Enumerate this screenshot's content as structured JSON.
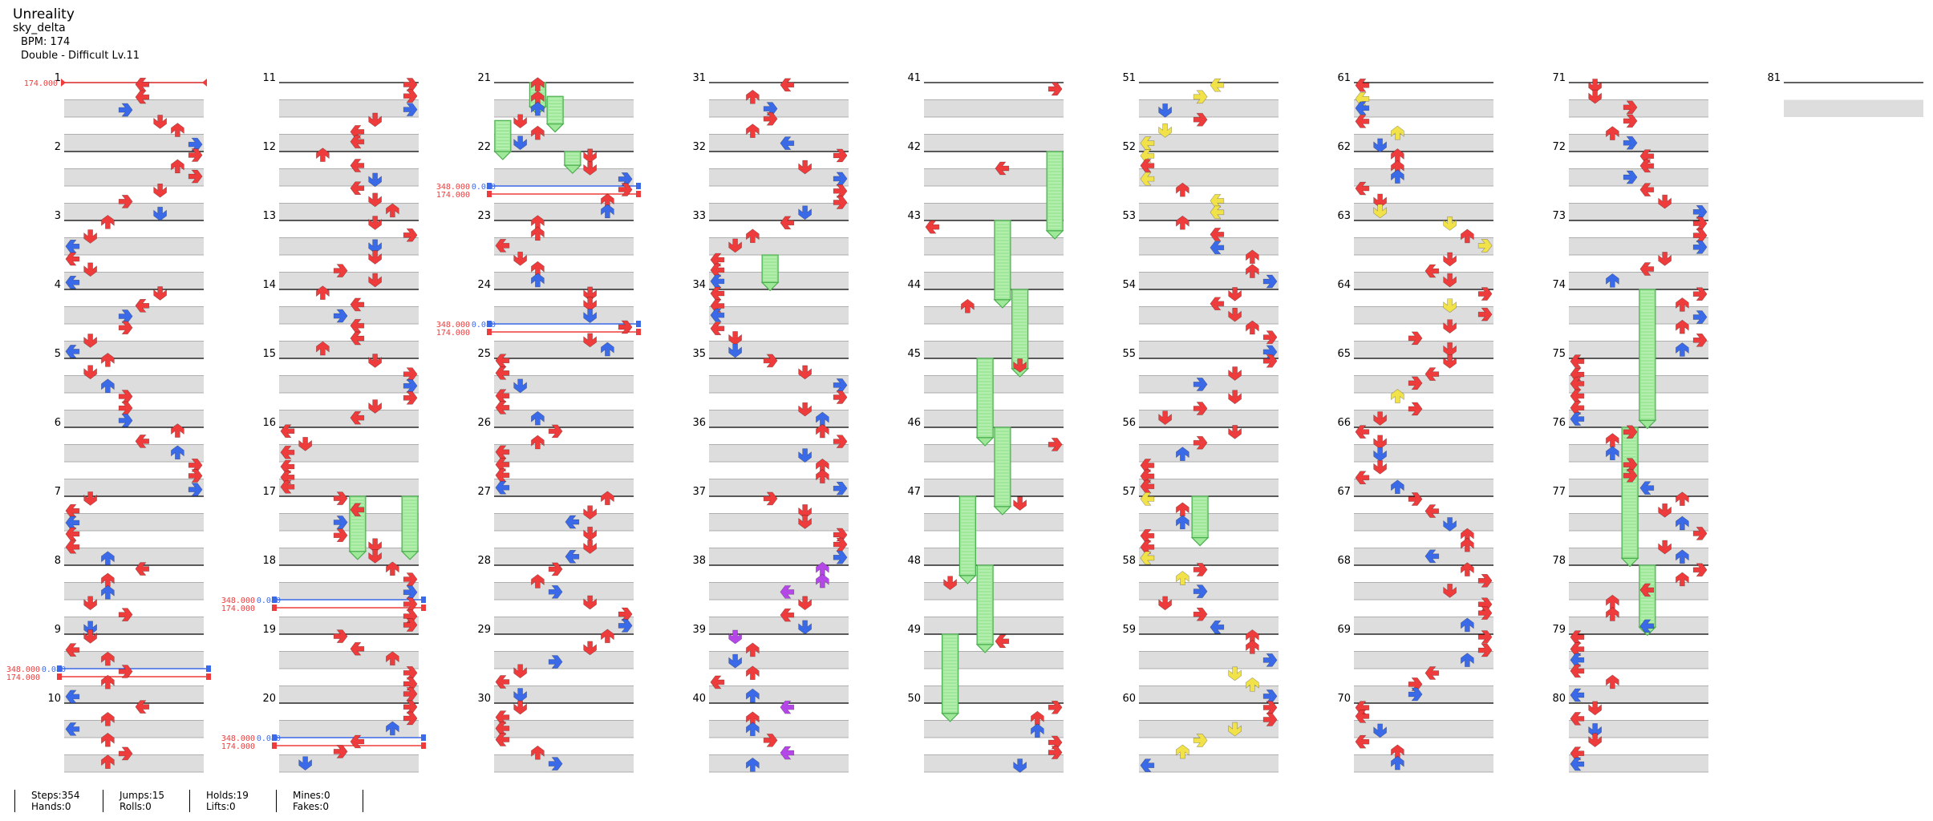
{
  "song": {
    "title": "Unreality",
    "author": "sky_delta",
    "bpm": "BPM: 174",
    "difficulty": "Double - Difficult  Lv.11"
  },
  "stats": [
    {
      "line1": "Steps:354",
      "line2": "Hands:0"
    },
    {
      "line1": "Jumps:15",
      "line2": "Rolls:0"
    },
    {
      "line1": "Holds:19",
      "line2": "Lifts:0"
    },
    {
      "line1": "Mines:0",
      "line2": "Fakes:0"
    }
  ],
  "colors": {
    "red": "#ee3b3b",
    "blue": "#3b6ae8",
    "purple": "#b547e8",
    "yellow": "#f2e24a",
    "hold": "#9fe89a",
    "stripe": "#dddddd"
  },
  "chart_data": {
    "type": "stepchart",
    "measures": [
      "1",
      "2",
      "3",
      "4",
      "5",
      "6",
      "7",
      "8",
      "9",
      "10",
      "11",
      "12",
      "13",
      "14",
      "15",
      "16",
      "17",
      "18",
      "19",
      "20",
      "21",
      "22",
      "23",
      "24",
      "25",
      "26",
      "27",
      "28",
      "29",
      "30",
      "31",
      "32",
      "33",
      "34",
      "35",
      "36",
      "37",
      "38",
      "39",
      "40",
      "41",
      "42",
      "43",
      "44",
      "45",
      "46",
      "47",
      "48",
      "49",
      "50",
      "51",
      "52",
      "53",
      "54",
      "55",
      "56",
      "57",
      "58",
      "59",
      "60",
      "61",
      "62",
      "63",
      "64",
      "65",
      "66",
      "67",
      "68",
      "69",
      "70",
      "71",
      "72",
      "73",
      "74",
      "75",
      "76",
      "77",
      "78",
      "79",
      "80",
      "81"
    ],
    "bpm_changes": [
      {
        "measure": 1,
        "pos": 0,
        "label": "174.000",
        "color": "red",
        "pair": false
      },
      {
        "measure": 9,
        "pos": 0.5,
        "label": "348.000",
        "label2": "0.080",
        "sub": "174.000",
        "pair": true
      },
      {
        "measure": 18,
        "pos": 0.5,
        "label": "348.000",
        "label2": "0.080",
        "sub": "174.000",
        "pair": true
      },
      {
        "measure": 20,
        "pos": 0.5,
        "label": "348.000",
        "label2": "0.080",
        "sub": "174.000",
        "pair": true
      },
      {
        "measure": 22,
        "pos": 0.5,
        "label": "348.000",
        "label2": "0.080",
        "sub": "174.000",
        "pair": true
      },
      {
        "measure": 24,
        "pos": 0.5,
        "label": "348.000",
        "label2": "0.080",
        "sub": "174.000",
        "pair": true
      }
    ],
    "holds": [
      {
        "measure": 21,
        "lane": 2,
        "start": 0,
        "end": 0.35
      },
      {
        "measure": 21,
        "lane": 3,
        "start": 0.2,
        "end": 0.6
      },
      {
        "measure": 21,
        "lane": 0,
        "start": 0.55,
        "end": 1.0
      },
      {
        "measure": 22,
        "lane": 4,
        "start": 0,
        "end": 0.2
      },
      {
        "measure": 17,
        "lane": 4,
        "start": 0,
        "end": 0.8
      },
      {
        "measure": 17,
        "lane": 7,
        "start": 0,
        "end": 0.8
      },
      {
        "measure": 33,
        "lane": 3,
        "start": 0.5,
        "end": 0.9
      },
      {
        "measure": 42,
        "lane": 7,
        "start": 0,
        "end": 1.15
      },
      {
        "measure": 43,
        "lane": 4,
        "start": 0,
        "end": 1.15
      },
      {
        "measure": 44,
        "lane": 5,
        "start": 0,
        "end": 1.15
      },
      {
        "measure": 45,
        "lane": 3,
        "start": 0,
        "end": 1.15
      },
      {
        "measure": 46,
        "lane": 4,
        "start": 0,
        "end": 1.15
      },
      {
        "measure": 47,
        "lane": 2,
        "start": 0,
        "end": 1.15
      },
      {
        "measure": 48,
        "lane": 3,
        "start": 0,
        "end": 1.15
      },
      {
        "measure": 49,
        "lane": 1,
        "start": 0,
        "end": 1.15
      },
      {
        "measure": 57,
        "lane": 3,
        "start": 0,
        "end": 0.6
      },
      {
        "measure": 74,
        "lane": 4,
        "start": 0,
        "end": 1.9
      },
      {
        "measure": 76,
        "lane": 3,
        "start": 0,
        "end": 1.9
      },
      {
        "measure": 78,
        "lane": 4,
        "start": 0,
        "end": 0.9
      }
    ]
  }
}
